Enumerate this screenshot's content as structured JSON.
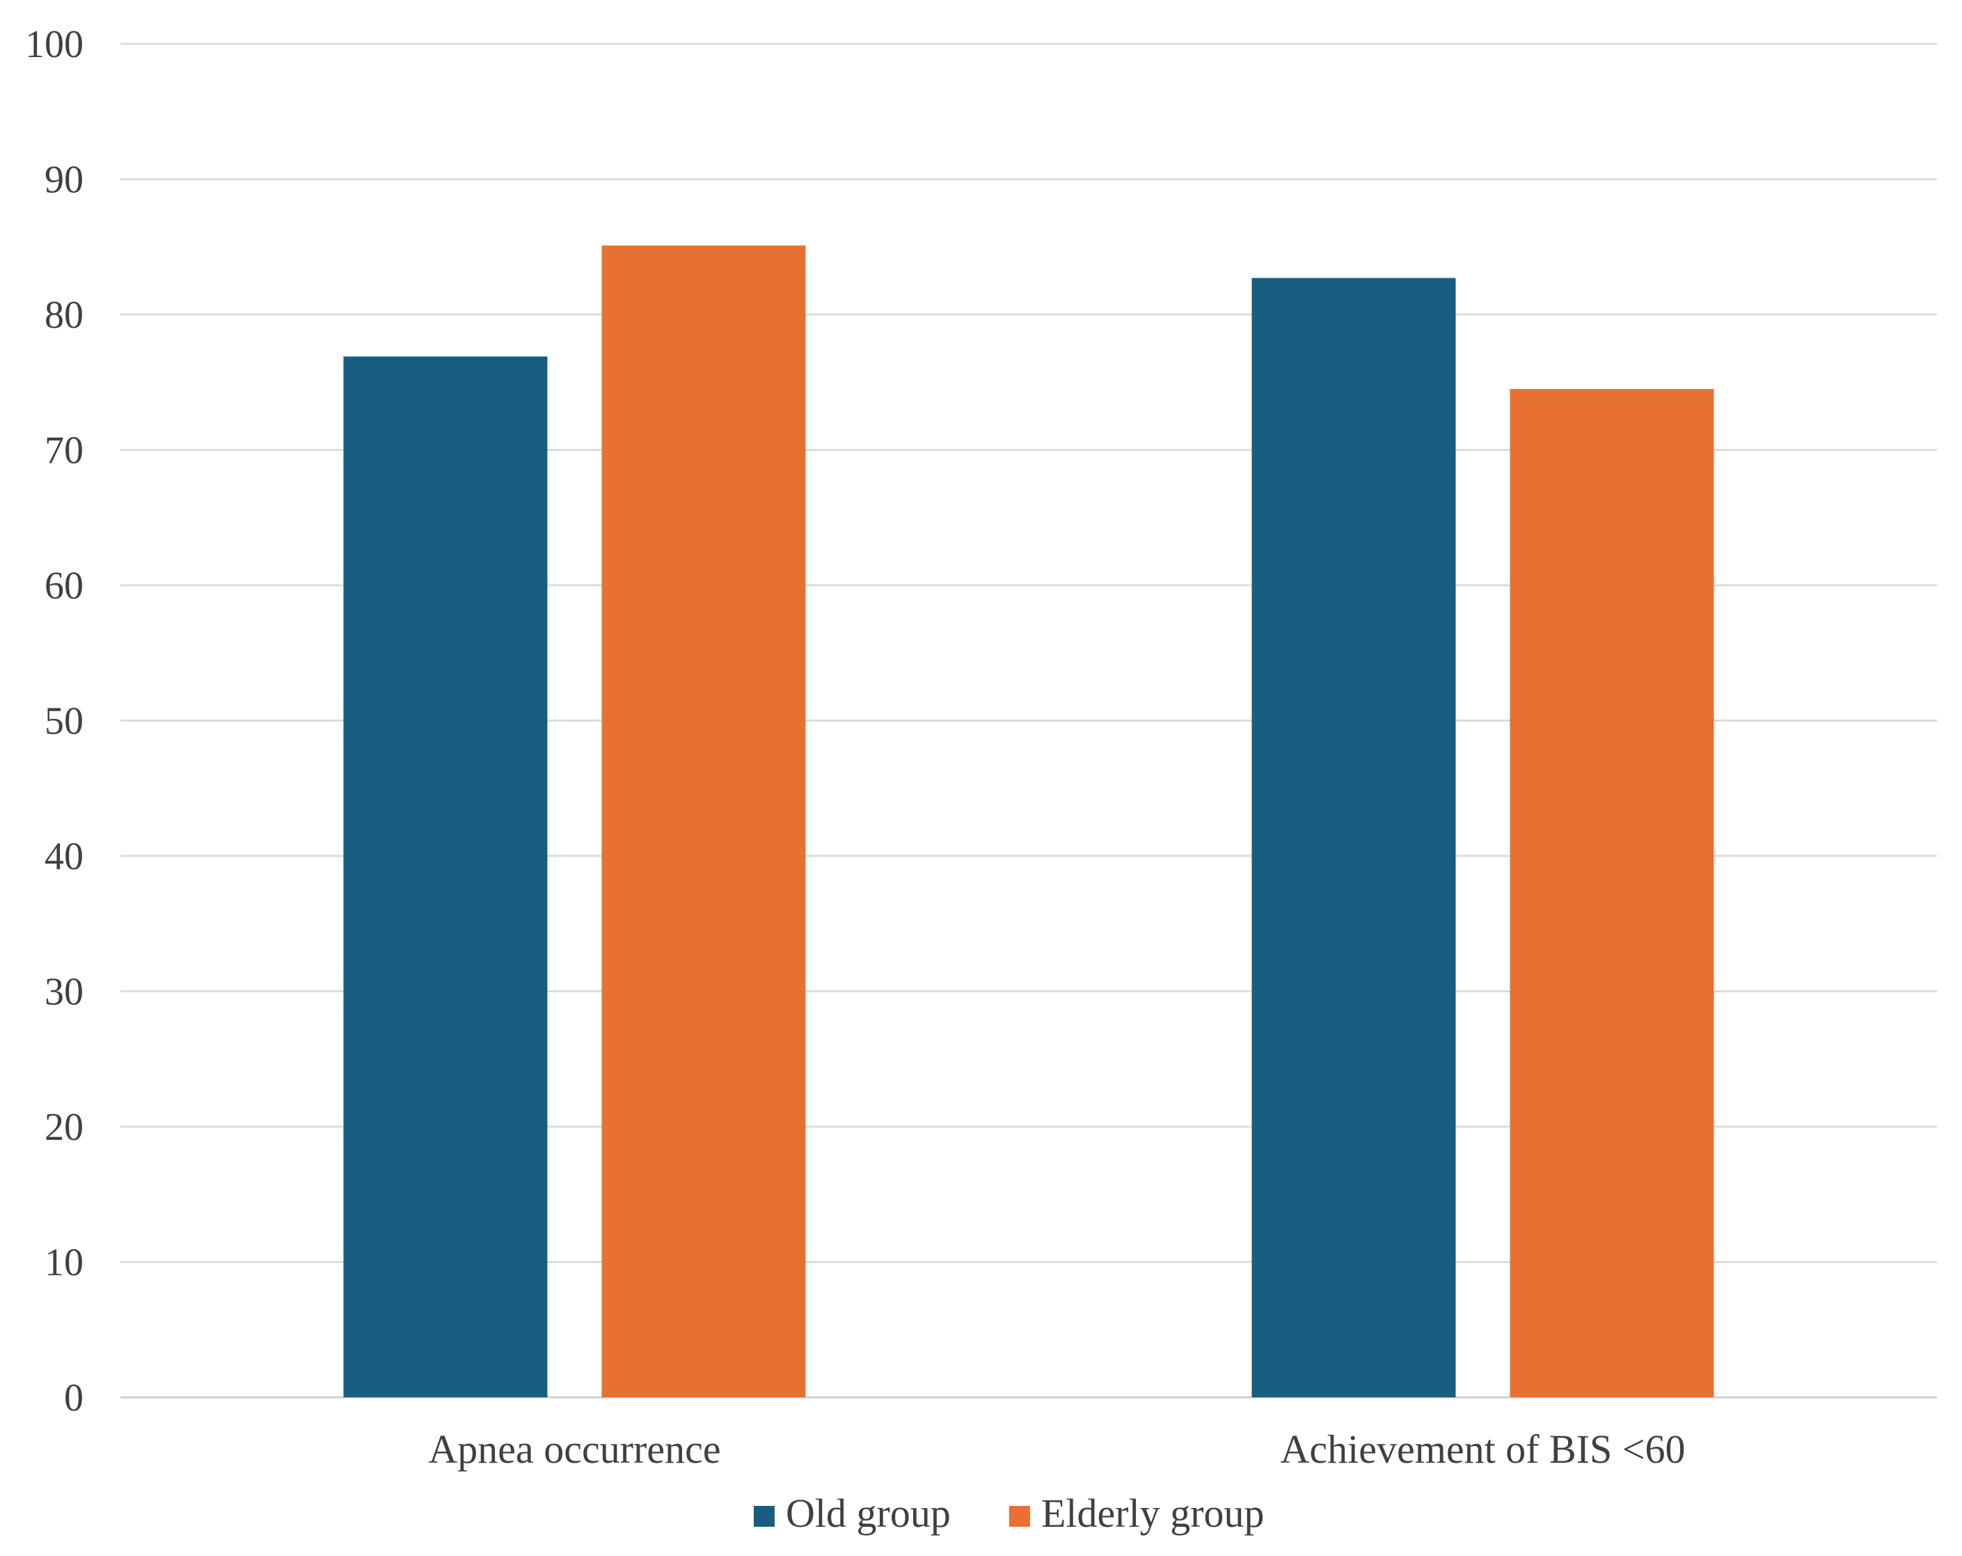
{
  "chart_data": {
    "type": "bar",
    "title": "",
    "xlabel": "",
    "ylabel": "",
    "ylim": [
      0,
      100
    ],
    "yticks": [
      0,
      10,
      20,
      30,
      40,
      50,
      60,
      70,
      80,
      90,
      100
    ],
    "ytick_labels": [
      "0",
      "10",
      "20",
      "30",
      "40",
      "50",
      "60",
      "70",
      "80",
      "90",
      "100"
    ],
    "categories": [
      "Apnea occurrence",
      "Achievement of BIS <60"
    ],
    "series": [
      {
        "name": "Old group",
        "color": "#175e82",
        "values": [
          76.9,
          82.7
        ]
      },
      {
        "name": "Elderly group",
        "color": "#e87132",
        "values": [
          85.1,
          74.5
        ]
      }
    ],
    "grid": true,
    "legend": "bottom"
  }
}
